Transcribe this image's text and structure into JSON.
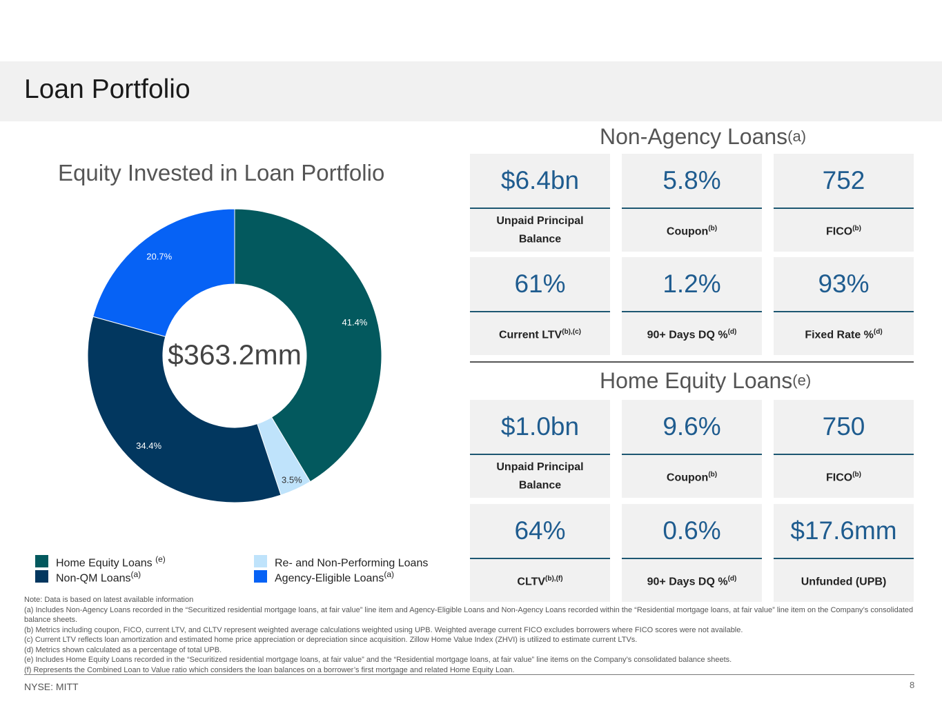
{
  "page": {
    "title": "Loan Portfolio",
    "footer_left": "NYSE: MITT",
    "page_number": "8"
  },
  "chart_data": {
    "type": "pie",
    "title": "Equity Invested in Loan Portfolio",
    "center_label": "$363.2mm",
    "slices": [
      {
        "name": "Home Equity Loans",
        "value": 41.4,
        "label": "41.4%",
        "color": "#03595e"
      },
      {
        "name": "Re- and Non-Performing Loans",
        "value": 3.5,
        "label": "3.5%",
        "color": "#bfe3fb"
      },
      {
        "name": "Non-QM Loans",
        "value": 34.4,
        "label": "34.4%",
        "color": "#02375f"
      },
      {
        "name": "Agency-Eligible Loans",
        "value": 20.7,
        "label": "20.7%",
        "color": "#0662f5"
      }
    ],
    "legend": [
      {
        "label": "Home Equity Loans ",
        "sup": "(e)",
        "color": "#03595e"
      },
      {
        "label": "Non-QM Loans",
        "sup": "(a)",
        "color": "#02375f"
      },
      {
        "label": "Re- and Non-Performing Loans",
        "sup": "",
        "color": "#bfe3fb"
      },
      {
        "label": "Agency-Eligible Loans",
        "sup": "(a)",
        "color": "#0662f5"
      }
    ]
  },
  "non_agency": {
    "title": "Non-Agency Loans",
    "title_sup": "(a)",
    "cards": [
      {
        "value": "$6.4bn",
        "label": "Unpaid Principal Balance",
        "sup": ""
      },
      {
        "value": "5.8%",
        "label": "Coupon",
        "sup": "(b)"
      },
      {
        "value": "752",
        "label": "FICO",
        "sup": "(b)"
      },
      {
        "value": "61%",
        "label": "Current LTV",
        "sup": "(b),(c)"
      },
      {
        "value": "1.2%",
        "label": "90+ Days DQ %",
        "sup": "(d)"
      },
      {
        "value": "93%",
        "label": "Fixed Rate %",
        "sup": "(d)"
      }
    ]
  },
  "home_equity": {
    "title": "Home Equity Loans",
    "title_sup": "(e)",
    "cards": [
      {
        "value": "$1.0bn",
        "label": "Unpaid Principal Balance",
        "sup": ""
      },
      {
        "value": "9.6%",
        "label": "Coupon",
        "sup": "(b)"
      },
      {
        "value": "750",
        "label": "FICO",
        "sup": "(b)"
      },
      {
        "value": "64%",
        "label": "CLTV",
        "sup": "(b),(f)"
      },
      {
        "value": "0.6%",
        "label": "90+ Days DQ %",
        "sup": "(d)"
      },
      {
        "value": "$17.6mm",
        "label": "Unfunded (UPB)",
        "sup": ""
      }
    ]
  },
  "notes": [
    "Note: Data is based on latest available information",
    "(a) Includes Non-Agency Loans recorded in the “Securitized residential mortgage loans, at fair value” line item and Agency-Eligible Loans and Non-Agency Loans recorded within the “Residential mortgage loans, at fair value” line item on the Company’s consolidated balance sheets.",
    "(b) Metrics including coupon, FICO, current LTV, and CLTV represent weighted average calculations weighted using UPB. Weighted average current FICO excludes borrowers where FICO scores were not available.",
    "(c) Current LTV reflects loan amortization and estimated home price appreciation or depreciation since acquisition. Zillow Home Value Index (ZHVI) is utilized to estimate current LTVs.",
    "(d) Metrics shown calculated as a percentage of total UPB.",
    "(e) Includes Home Equity Loans recorded in the “Securitized residential mortgage loans, at fair value” and the “Residential mortgage loans, at fair value” line items on the Company’s consolidated balance sheets.",
    "(f) Represents the Combined Loan to Value ratio which considers the loan balances on a borrower’s first mortgage and related Home Equity Loan."
  ]
}
